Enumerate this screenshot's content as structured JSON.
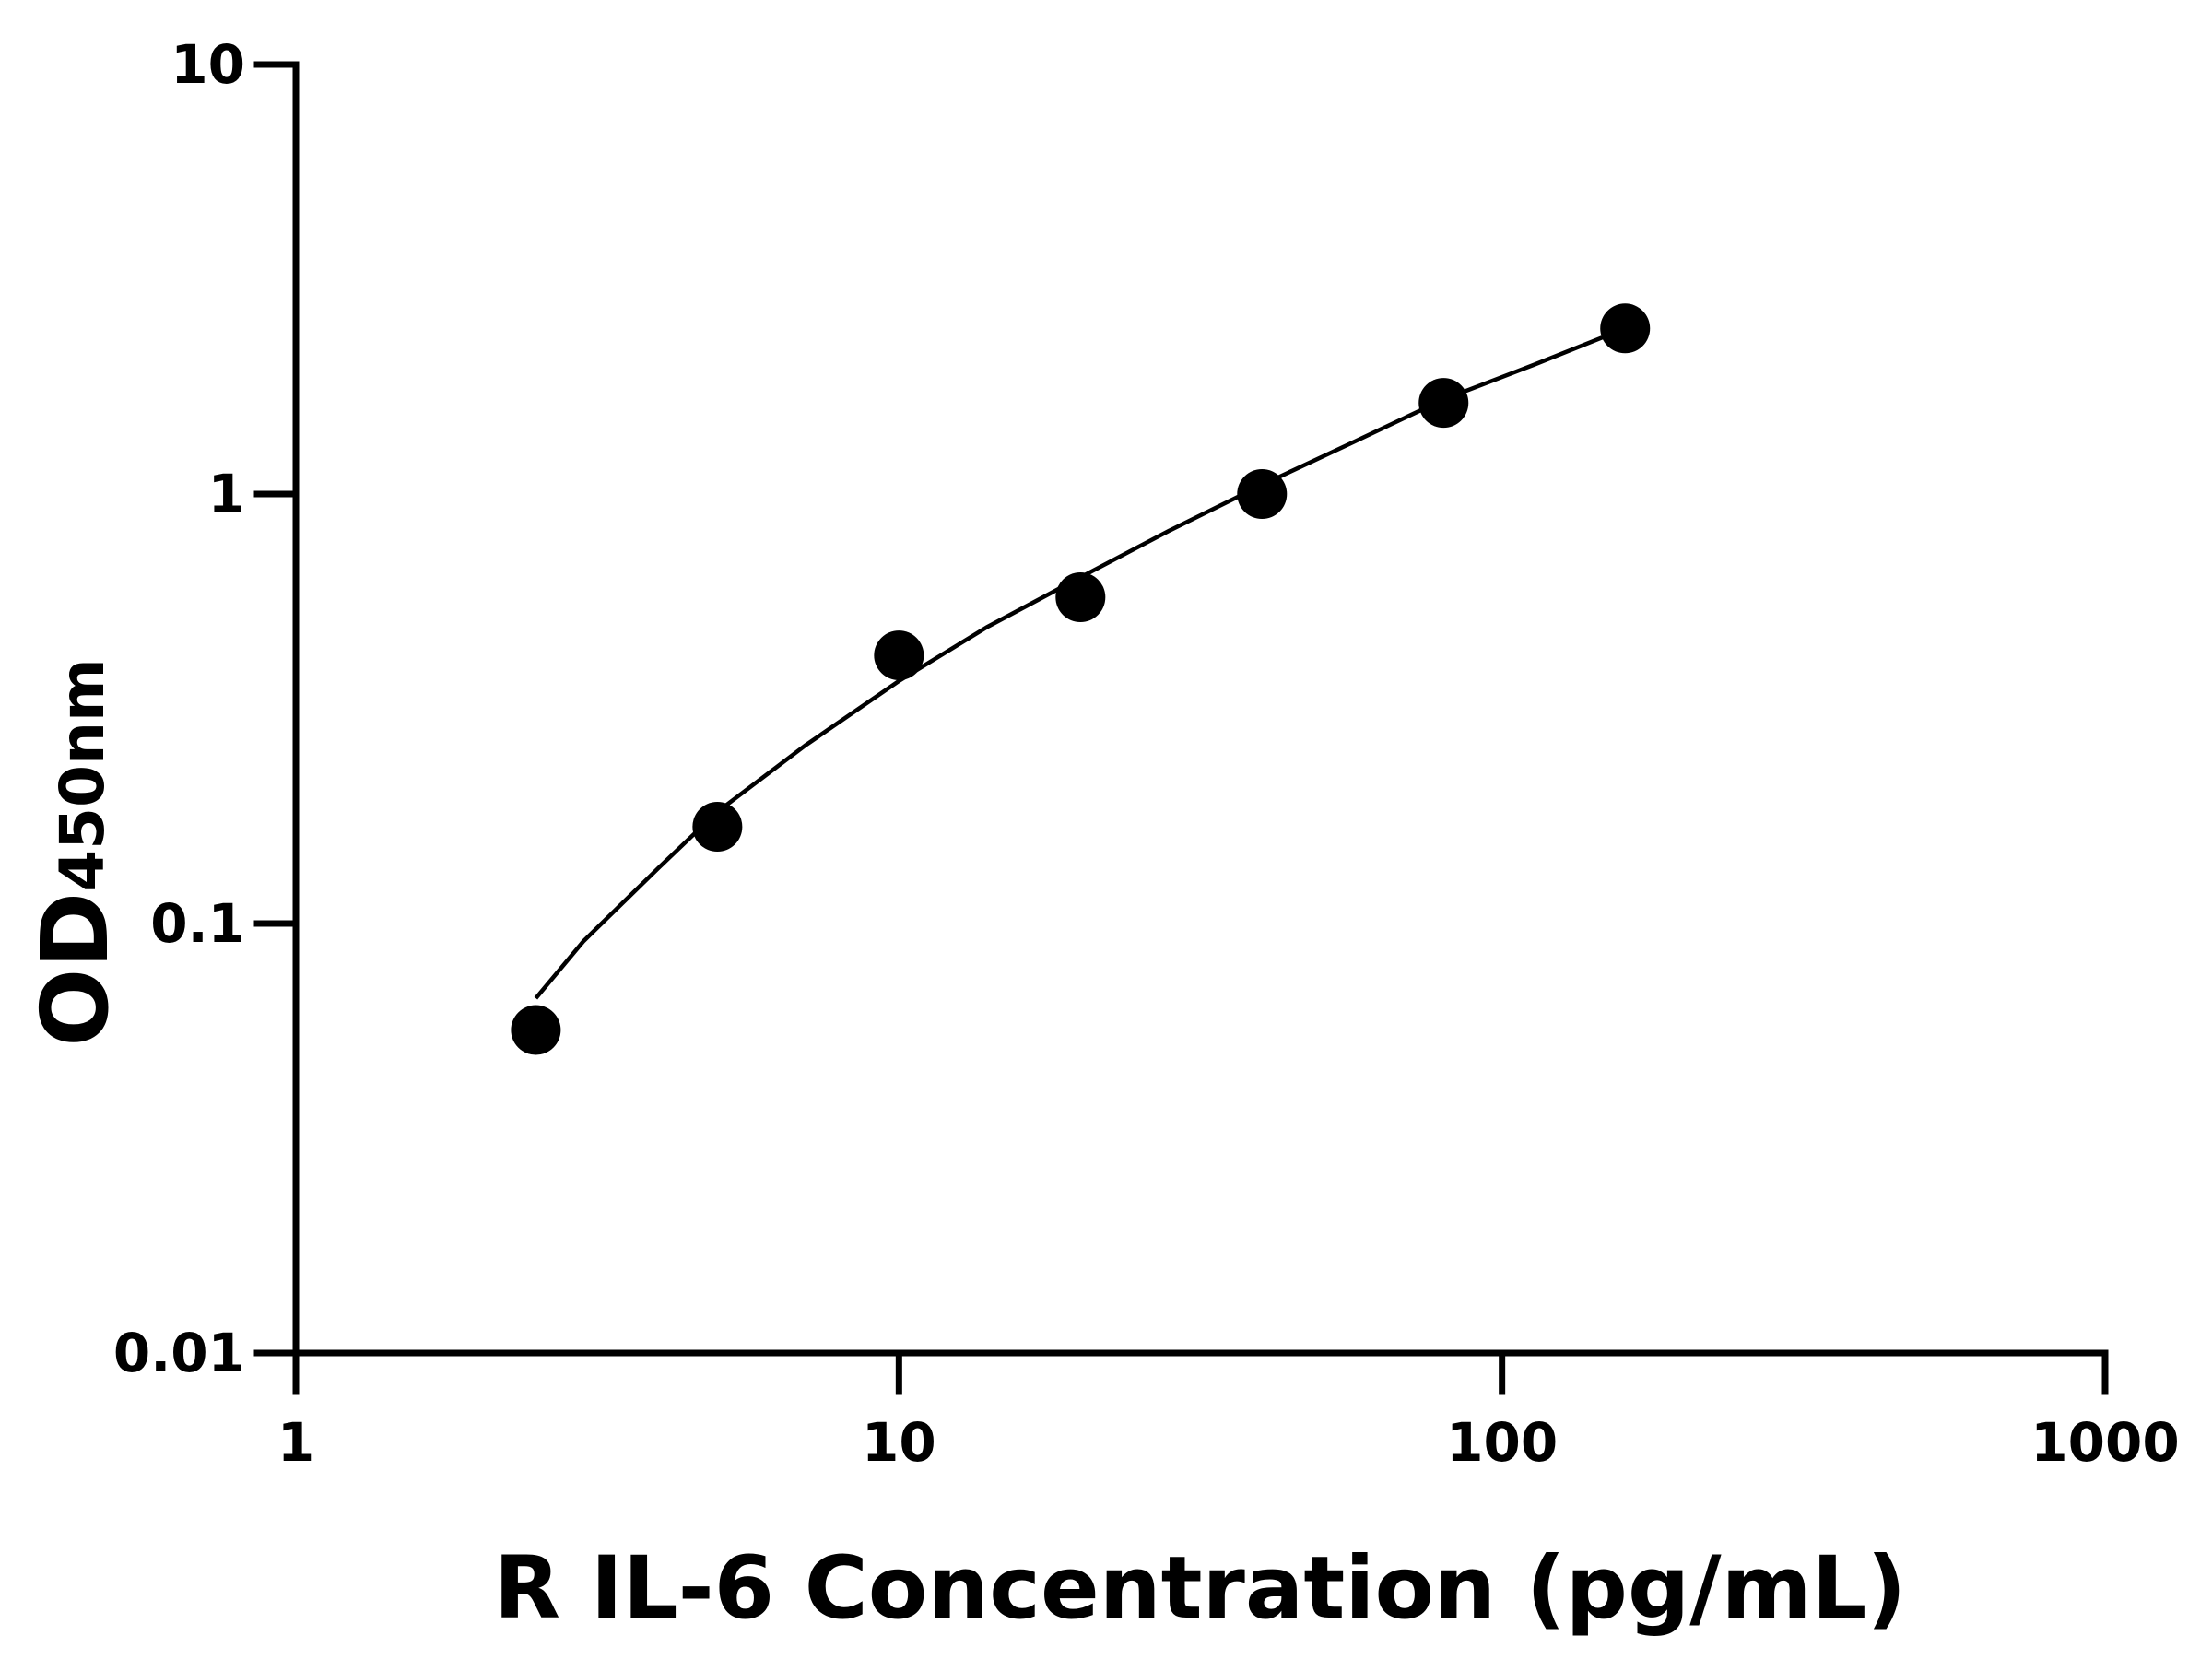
{
  "chart_data": {
    "type": "scatter",
    "x_label": "R IL-6 Concentration (pg/mL)",
    "y_label": "OD",
    "y_label_sub": "450nm",
    "x": [
      2.5,
      5,
      10,
      20,
      40,
      80,
      160
    ],
    "values": [
      0.0565,
      0.168,
      0.421,
      0.575,
      1.0,
      1.63,
      2.43
    ],
    "color": "#000000",
    "curve": {
      "x": [
        2.5,
        3,
        4,
        5,
        7,
        10,
        14,
        20,
        28,
        40,
        56,
        80,
        113,
        160
      ],
      "y": [
        0.067,
        0.091,
        0.135,
        0.182,
        0.26,
        0.367,
        0.49,
        0.64,
        0.82,
        1.05,
        1.31,
        1.66,
        2.0,
        2.43
      ]
    },
    "xscale": "log",
    "yscale": "log",
    "xlim": [
      1,
      1000
    ],
    "ylim": [
      0.01,
      10
    ],
    "xticks": [
      1,
      10,
      100,
      1000
    ],
    "yticks": [
      0.01,
      0.1,
      1,
      10
    ]
  }
}
